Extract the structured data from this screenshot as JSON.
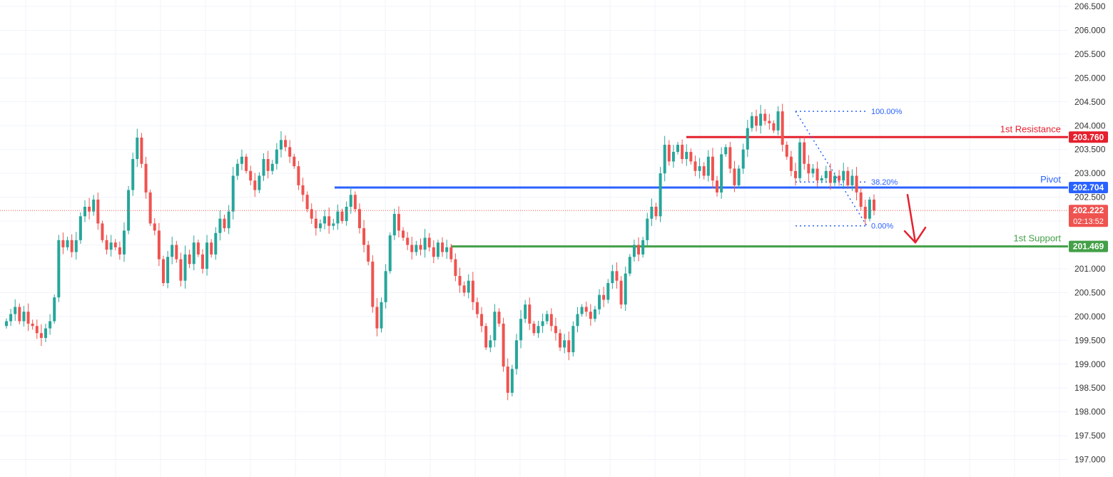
{
  "chart_data": {
    "type": "candlestick",
    "ylim": [
      196.75,
      206.5
    ],
    "y_ticks": [
      "206.500",
      "206.000",
      "205.500",
      "205.000",
      "204.500",
      "204.000",
      "203.500",
      "203.000",
      "202.500",
      "202.000",
      "201.500",
      "201.000",
      "200.500",
      "200.000",
      "199.500",
      "199.000",
      "198.500",
      "198.000",
      "197.500",
      "197.000"
    ],
    "grid": true,
    "colors": {
      "up": "#26a69a",
      "down": "#ef5350",
      "resistance": "#e5202e",
      "pivot": "#2962ff",
      "support": "#43a047",
      "current_price": "#ef5350"
    },
    "closes": [
      199.9,
      200.05,
      200.2,
      199.9,
      200.1,
      199.85,
      199.8,
      199.65,
      199.55,
      199.75,
      199.9,
      200.4,
      201.6,
      201.45,
      201.6,
      201.35,
      201.6,
      202.1,
      202.3,
      202.2,
      202.45,
      201.95,
      201.6,
      201.4,
      201.55,
      201.45,
      201.3,
      201.8,
      202.65,
      203.3,
      203.75,
      203.2,
      202.6,
      201.95,
      201.8,
      201.2,
      200.7,
      201.25,
      201.5,
      201.2,
      200.75,
      201.3,
      201.1,
      201.55,
      201.3,
      201.0,
      201.55,
      201.3,
      201.75,
      202.05,
      201.85,
      202.2,
      202.95,
      203.2,
      203.35,
      203.05,
      202.85,
      202.65,
      202.95,
      203.3,
      203.05,
      203.2,
      203.5,
      203.7,
      203.55,
      203.35,
      203.15,
      202.75,
      202.55,
      202.25,
      202.05,
      201.85,
      201.95,
      202.1,
      201.9,
      201.95,
      202.2,
      202.0,
      202.3,
      202.55,
      202.25,
      201.85,
      201.5,
      201.15,
      200.2,
      199.75,
      200.3,
      200.95,
      201.7,
      202.15,
      201.8,
      201.65,
      201.5,
      201.35,
      201.5,
      201.4,
      201.65,
      201.45,
      201.25,
      201.55,
      201.35,
      201.45,
      201.2,
      200.85,
      200.65,
      200.5,
      200.75,
      200.3,
      200.05,
      199.8,
      199.35,
      199.5,
      200.1,
      199.85,
      198.95,
      198.4,
      198.9,
      199.5,
      199.95,
      200.25,
      199.85,
      199.65,
      199.8,
      199.9,
      200.05,
      199.8,
      199.65,
      199.35,
      199.5,
      199.25,
      199.8,
      200.05,
      200.2,
      200.1,
      199.95,
      200.15,
      200.45,
      200.35,
      200.7,
      200.95,
      200.75,
      200.25,
      200.9,
      201.25,
      201.5,
      201.3,
      201.6,
      202.05,
      202.3,
      202.1,
      203.0,
      203.6,
      203.25,
      203.45,
      203.6,
      203.3,
      203.45,
      203.25,
      203.05,
      203.15,
      202.95,
      203.35,
      202.85,
      202.6,
      203.4,
      203.55,
      203.1,
      202.75,
      203.1,
      203.5,
      203.95,
      204.2,
      204.0,
      204.25,
      204.1,
      204.05,
      203.9,
      204.3,
      203.6,
      203.35,
      203.05,
      202.9,
      203.65,
      203.2,
      203.0,
      203.1,
      202.85,
      202.9,
      203.05,
      202.8,
      202.95,
      202.85,
      203.05,
      202.75,
      202.95,
      202.6,
      202.3,
      202.05,
      202.45,
      202.22
    ],
    "levels": [
      {
        "name": "1st Resistance",
        "value": 203.76,
        "tag": "203.760"
      },
      {
        "name": "Pivot",
        "value": 202.704,
        "tag": "202.704"
      },
      {
        "name": "1st Support",
        "value": 201.469,
        "tag": "201.469"
      }
    ],
    "fibonacci": [
      {
        "label": "100.00%",
        "value": 204.3
      },
      {
        "label": "38.20%",
        "value": 202.82
      },
      {
        "label": "0.00%",
        "value": 201.9
      }
    ],
    "current_price": {
      "value": 202.222,
      "tag": "202.222",
      "countdown": "02:13:52"
    },
    "annotation": "bearish-arrow"
  }
}
